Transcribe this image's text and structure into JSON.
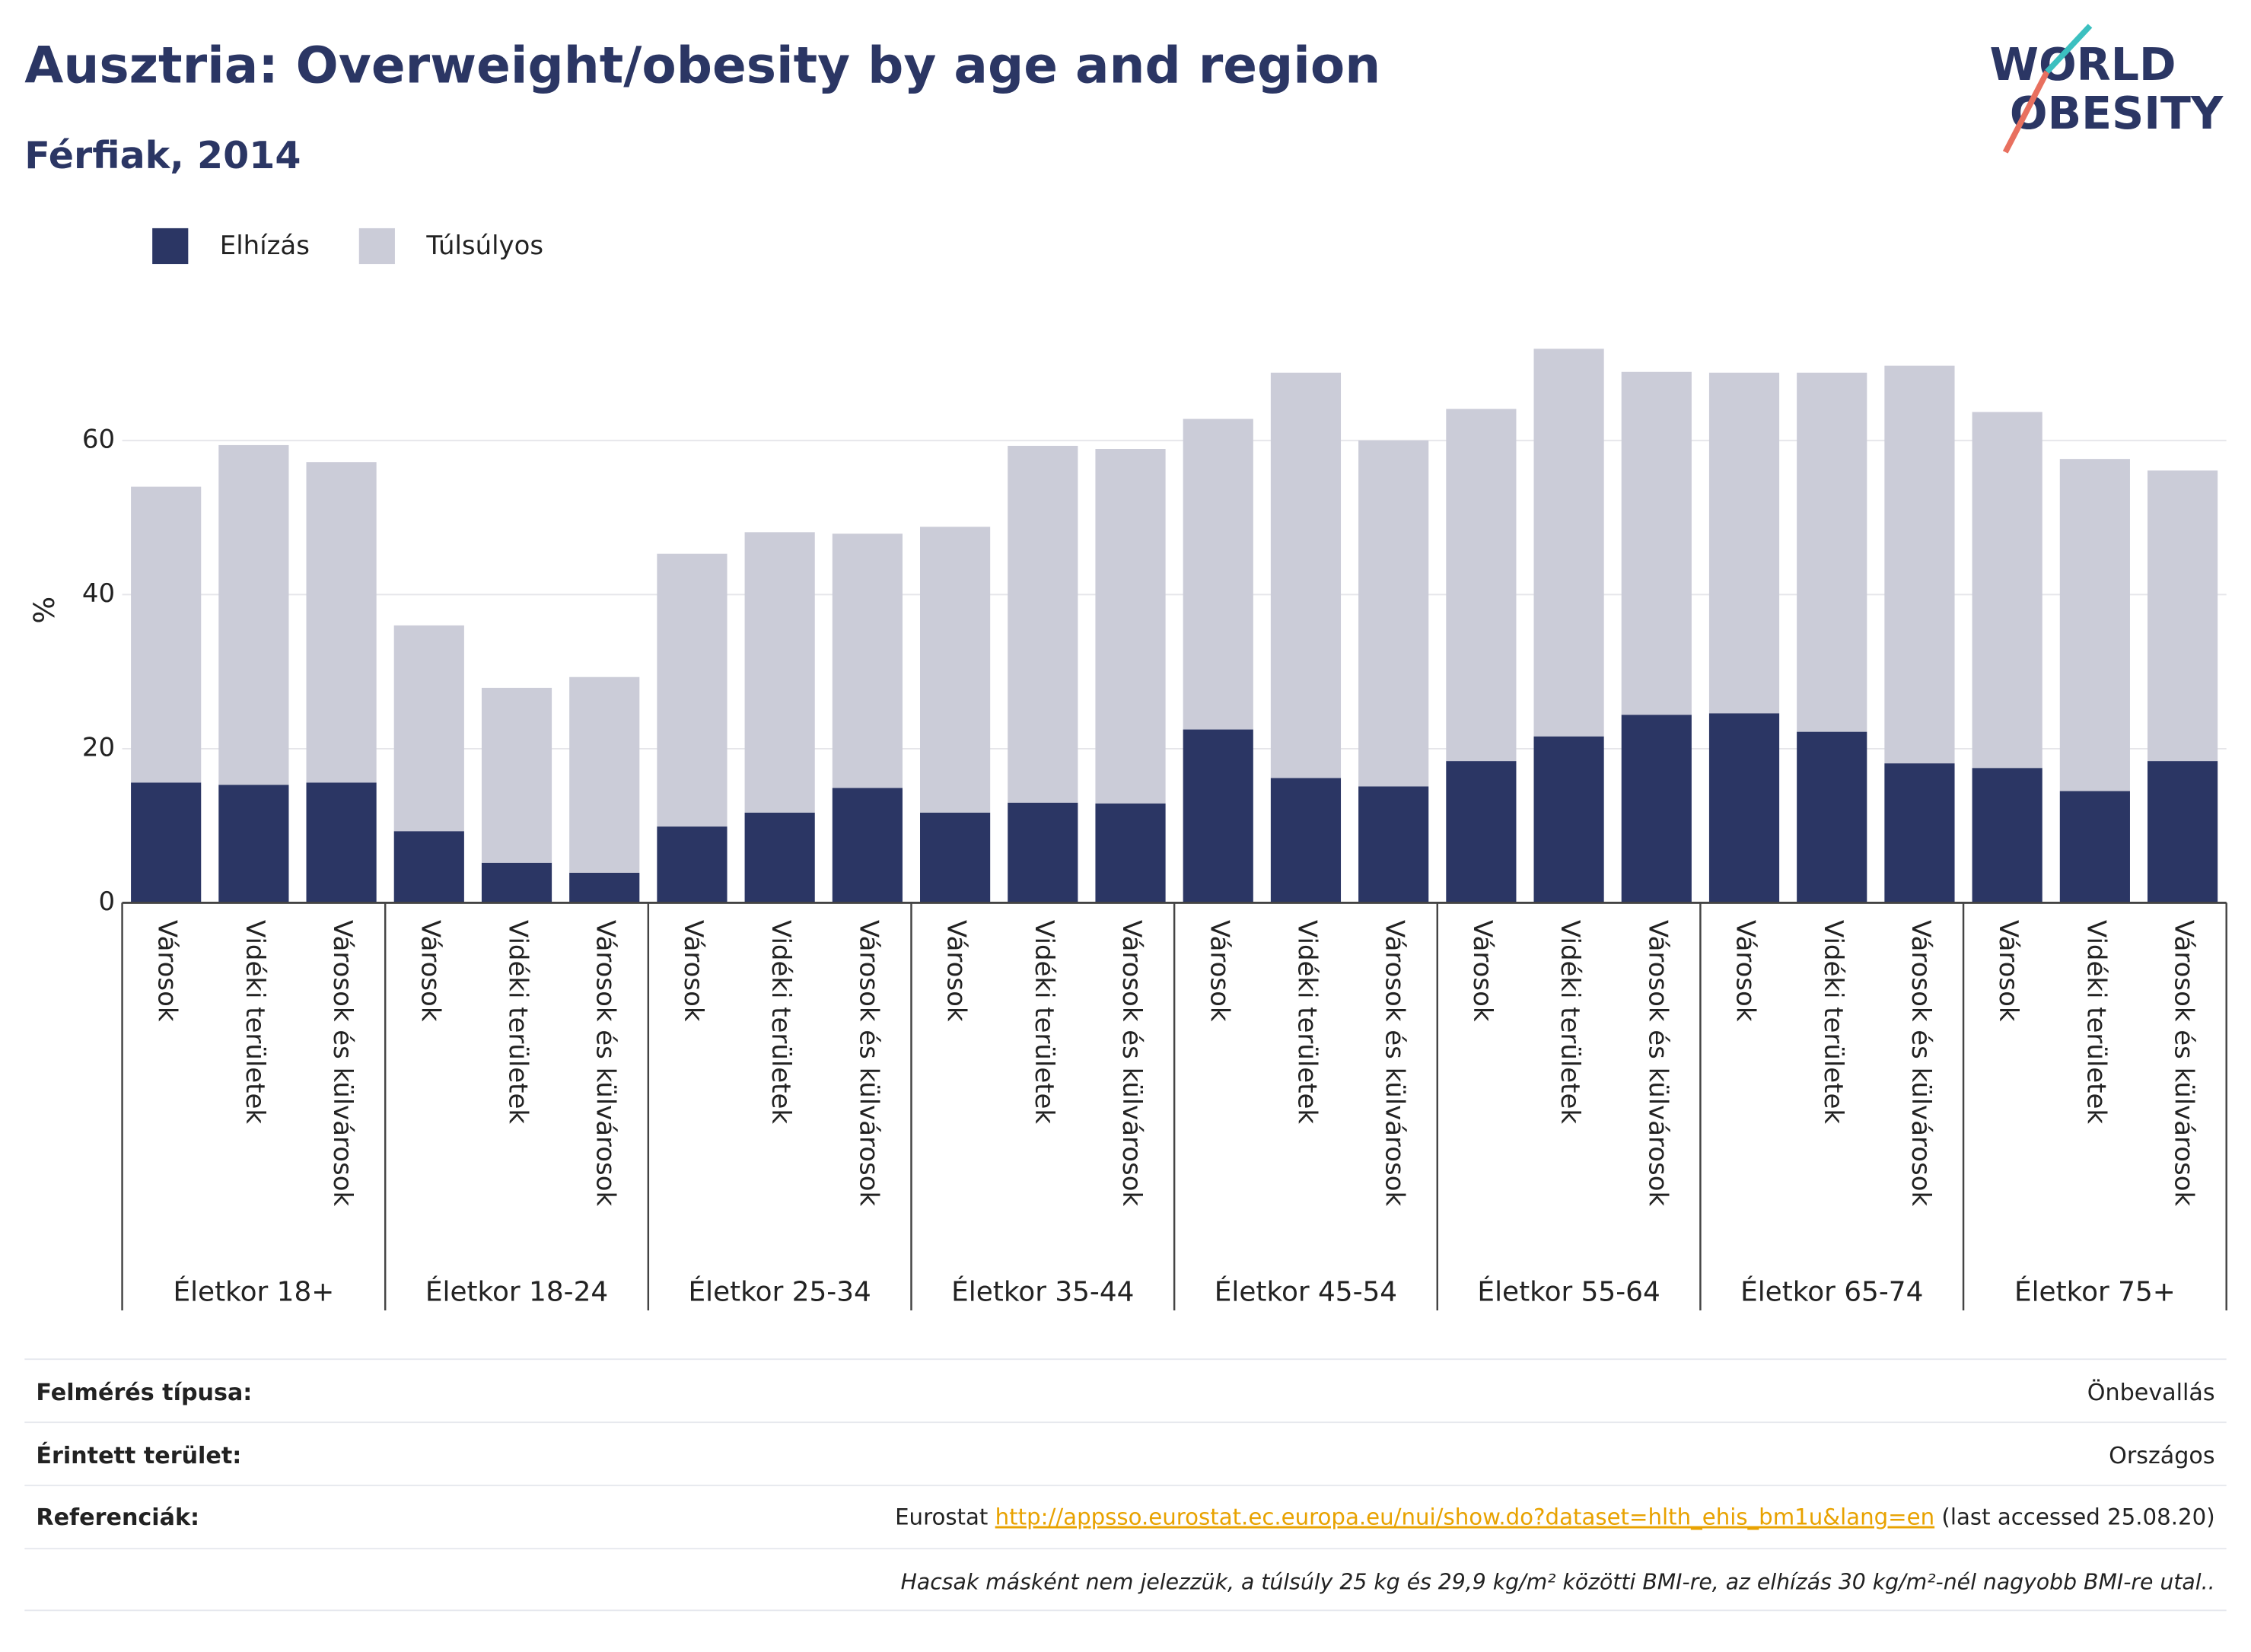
{
  "chart_data": {
    "type": "stacked_bar",
    "title": "Ausztria: Overweight/obesity by age and region",
    "subtitle": "Férfiak, 2014",
    "y_label": "%",
    "categories": [
      "Városok",
      "Vidéki területek",
      "Városok és külvárosok",
      "Városok",
      "Vidéki területek",
      "Városok és külvárosok",
      "Városok",
      "Vidéki területek",
      "Városok és külvárosok",
      "Városok",
      "Vidéki területek",
      "Városok és külvárosok",
      "Városok",
      "Vidéki területek",
      "Városok és külvárosok",
      "Városok",
      "Vidéki területek",
      "Városok és külvárosok",
      "Városok",
      "Vidéki területek",
      "Városok és külvárosok",
      "Városok",
      "Vidéki területek",
      "Városok és külvárosok"
    ],
    "groups": [
      "Életkor 18+",
      "Életkor 18-24",
      "Életkor 25-34",
      "Életkor 35-44",
      "Életkor 45-54",
      "Életkor 55-64",
      "Életkor 65-74",
      "Életkor 75+"
    ],
    "series": [
      {
        "name": "Elhízás",
        "color": "#2b3664",
        "values": [
          15.6,
          15.3,
          15.6,
          9.3,
          5.2,
          3.9,
          9.9,
          11.7,
          14.9,
          11.7,
          13.0,
          12.9,
          22.5,
          16.2,
          15.1,
          18.4,
          21.6,
          24.4,
          24.6,
          22.2,
          18.1,
          17.5,
          14.5,
          18.4
        ]
      },
      {
        "name": "Túlsúlyos",
        "color": "#cbccd8",
        "values": [
          38.4,
          44.1,
          41.6,
          26.7,
          22.7,
          25.4,
          35.4,
          36.4,
          33.0,
          37.1,
          46.3,
          46.0,
          40.3,
          52.6,
          44.9,
          45.7,
          50.3,
          44.5,
          44.2,
          46.6,
          51.6,
          46.2,
          43.1,
          37.7
        ]
      }
    ],
    "ylim": [
      0,
      76
    ],
    "yticks": [
      0,
      20,
      40,
      60
    ],
    "grid": true,
    "legend": "top-left"
  },
  "logo": [
    "WORLD",
    "OBESITY"
  ],
  "footer": {
    "rows": [
      [
        "Felmérés típusa:",
        "Önbevallás"
      ],
      [
        "Érintett terület:",
        "Országos"
      ]
    ],
    "reference_label": "Referenciák:",
    "reference_source": "Eurostat",
    "reference_url": "http://appsso.eurostat.ec.europa.eu/nui/show.do?dataset=hlth_ehis_bm1u&lang=en",
    "reference_note": "(last accessed 25.08.20)",
    "note": "Hacsak másként nem jelezzük, a túlsúly 25 kg és 29,9 kg/m² közötti BMI-re, az elhízás 30 kg/m²-nél nagyobb BMI-re utal.."
  }
}
